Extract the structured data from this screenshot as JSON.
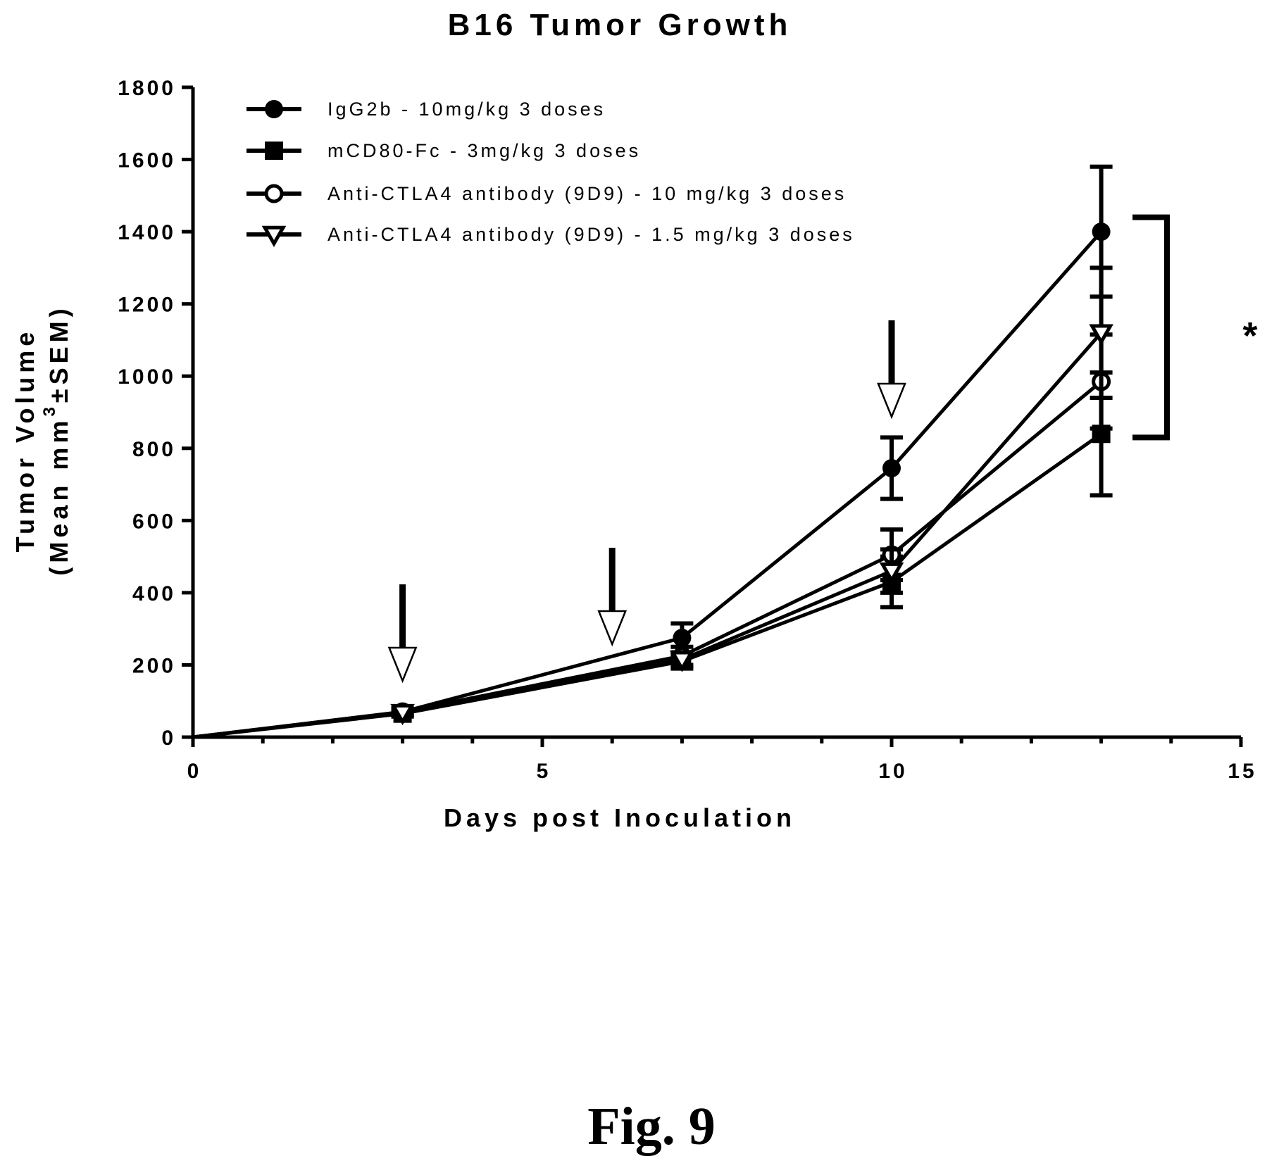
{
  "figure_label": "Fig. 9",
  "chart_data": {
    "type": "line",
    "title": "B16 Tumor Growth",
    "xlabel": "Days post Inoculation",
    "ylabel_line1": "Tumor Volume",
    "ylabel_line2_prefix": "(Mean mm",
    "ylabel_line2_sup": "3",
    "ylabel_line2_suffix": "±SEM)",
    "xlim": [
      0,
      15
    ],
    "ylim": [
      0,
      1800
    ],
    "xticks": [
      0,
      5,
      10,
      15
    ],
    "yticks": [
      0,
      200,
      400,
      600,
      800,
      1000,
      1200,
      1400,
      1600,
      1800
    ],
    "x_minor_step": 1,
    "legend_position": "top-left",
    "grid": false,
    "series": [
      {
        "name": "IgG2b - 10mg/kg 3 doses",
        "marker": "filled-circle",
        "x": [
          0,
          3,
          7,
          10,
          13
        ],
        "y": [
          0,
          70,
          275,
          745,
          1400
        ],
        "err": [
          0,
          10,
          40,
          85,
          180
        ]
      },
      {
        "name": "mCD80-Fc - 3mg/kg 3 doses",
        "marker": "filled-square",
        "x": [
          0,
          3,
          7,
          10,
          13
        ],
        "y": [
          0,
          65,
          210,
          430,
          840
        ],
        "err": [
          0,
          8,
          20,
          70,
          170
        ]
      },
      {
        "name": "Anti-CTLA4 antibody (9D9) - 10 mg/kg 3 doses",
        "marker": "open-circle",
        "x": [
          0,
          3,
          7,
          10,
          13
        ],
        "y": [
          0,
          70,
          225,
          505,
          985
        ],
        "err": [
          0,
          8,
          25,
          70,
          130
        ]
      },
      {
        "name": "Anti-CTLA4 antibody (9D9) - 1.5 mg/kg 3 doses",
        "marker": "open-triangle-down",
        "x": [
          0,
          3,
          7,
          10,
          13
        ],
        "y": [
          0,
          68,
          215,
          460,
          1120
        ],
        "err": [
          0,
          8,
          20,
          60,
          180
        ]
      }
    ],
    "dose_arrows_x": [
      3,
      6,
      10
    ],
    "significance": {
      "symbol": "*",
      "y_range": [
        830,
        1440
      ]
    }
  }
}
